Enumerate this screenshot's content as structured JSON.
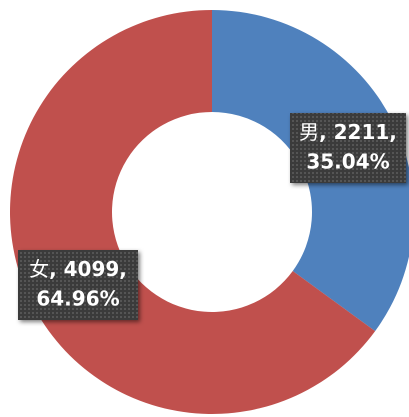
{
  "chart_data": {
    "type": "donut",
    "categories": [
      "男",
      "女"
    ],
    "values": [
      2211,
      4099
    ],
    "value_labels": [
      ", 2211,",
      ", 4099,"
    ],
    "percentages": [
      35.04,
      64.96
    ],
    "percent_labels": [
      "35.04%",
      "64.96%"
    ],
    "colors": [
      "#4f81bd",
      "#c0504d"
    ]
  }
}
